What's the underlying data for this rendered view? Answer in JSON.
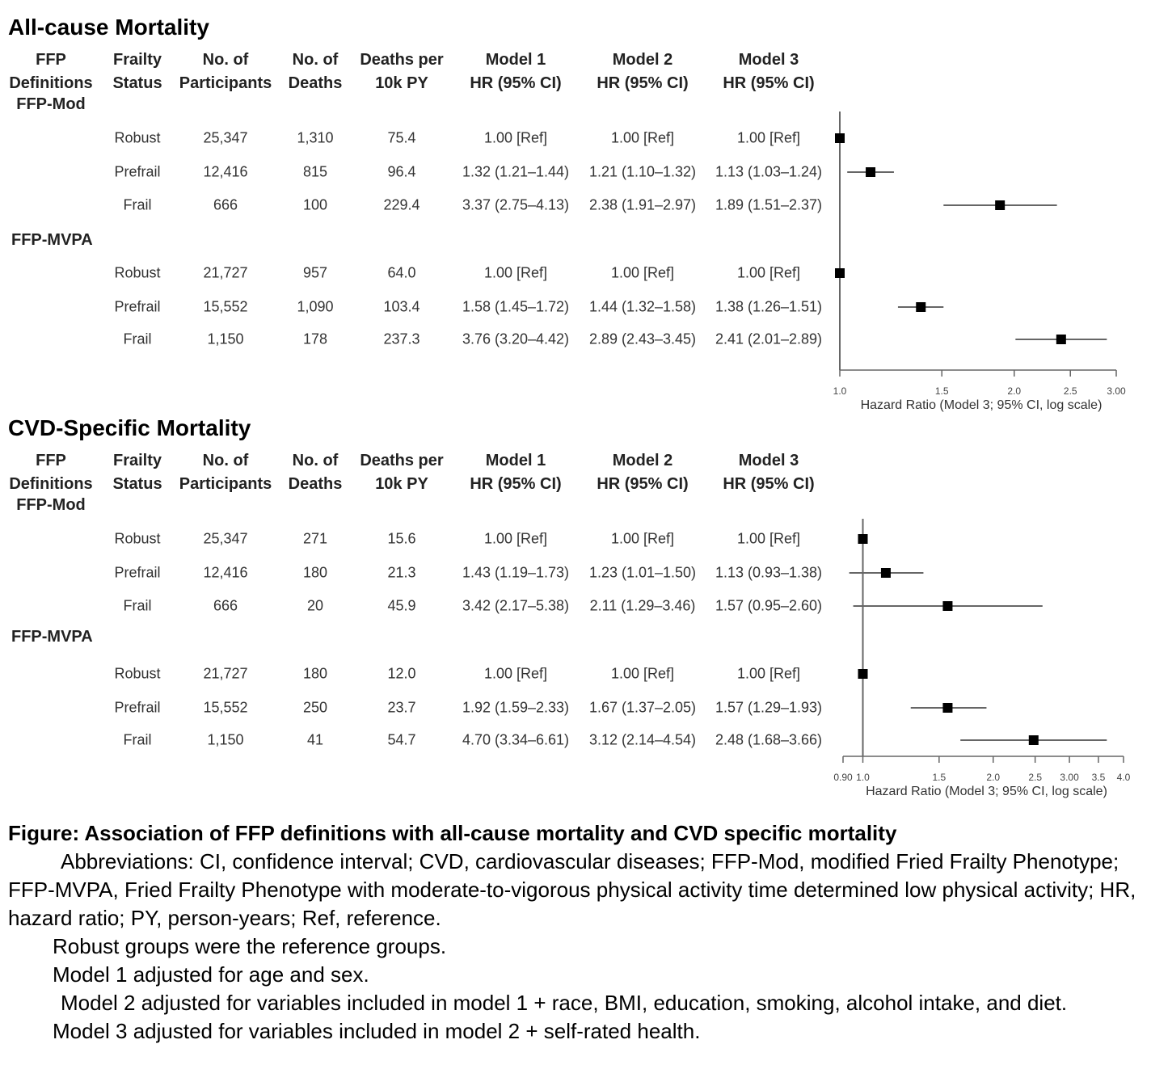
{
  "chart_data": [
    {
      "type": "forest",
      "title": "All-cause Mortality",
      "columns": [
        "FFP Definitions",
        "Frailty Status",
        "No. of Participants",
        "No. of Deaths",
        "Deaths per 10k PY",
        "Model 1 HR (95% CI)",
        "Model 2 HR (95% CI)",
        "Model 3 HR (95% CI)"
      ],
      "header_lines": [
        [
          "FFP",
          "Definitions",
          "FFP-Mod"
        ],
        [
          "Frailty",
          "Status"
        ],
        [
          "No. of",
          "Participants"
        ],
        [
          "No. of",
          "Deaths"
        ],
        [
          "Deaths per",
          "10k PY"
        ],
        [
          "Model 1",
          "HR (95% CI)"
        ],
        [
          "Model 2",
          "HR (95% CI)"
        ],
        [
          "Model 3",
          "HR (95% CI)"
        ]
      ],
      "second_group": "FFP-MVPA",
      "rows": [
        {
          "definition": "FFP-Mod",
          "status": "Robust",
          "participants": "25,347",
          "deaths": "1,310",
          "rate": "75.4",
          "m1": "1.00 [Ref]",
          "m2": "1.00 [Ref]",
          "m3": "1.00 [Ref]",
          "hr": 1.0,
          "lo": 1.0,
          "hi": 1.0
        },
        {
          "definition": "FFP-Mod",
          "status": "Prefrail",
          "participants": "12,416",
          "deaths": "815",
          "rate": "96.4",
          "m1": "1.32 (1.21–1.44)",
          "m2": "1.21 (1.10–1.32)",
          "m3": "1.13 (1.03–1.24)",
          "hr": 1.13,
          "lo": 1.03,
          "hi": 1.24
        },
        {
          "definition": "FFP-Mod",
          "status": "Frail",
          "participants": "666",
          "deaths": "100",
          "rate": "229.4",
          "m1": "3.37 (2.75–4.13)",
          "m2": "2.38 (1.91–2.97)",
          "m3": "1.89 (1.51–2.37)",
          "hr": 1.89,
          "lo": 1.51,
          "hi": 2.37
        },
        {
          "definition": "FFP-MVPA",
          "status": "Robust",
          "participants": "21,727",
          "deaths": "957",
          "rate": "64.0",
          "m1": "1.00 [Ref]",
          "m2": "1.00 [Ref]",
          "m3": "1.00 [Ref]",
          "hr": 1.0,
          "lo": 1.0,
          "hi": 1.0
        },
        {
          "definition": "FFP-MVPA",
          "status": "Prefrail",
          "participants": "15,552",
          "deaths": "1,090",
          "rate": "103.4",
          "m1": "1.58 (1.45–1.72)",
          "m2": "1.44 (1.32–1.58)",
          "m3": "1.38 (1.26–1.51)",
          "hr": 1.38,
          "lo": 1.26,
          "hi": 1.51
        },
        {
          "definition": "FFP-MVPA",
          "status": "Frail",
          "participants": "1,150",
          "deaths": "178",
          "rate": "237.3",
          "m1": "3.76 (3.20–4.42)",
          "m2": "2.89 (2.43–3.45)",
          "m3": "2.41 (2.01–2.89)",
          "hr": 2.41,
          "lo": 2.01,
          "hi": 2.89
        }
      ],
      "xscale": "log",
      "xlim": [
        1.0,
        3.0
      ],
      "xticks": [
        1.0,
        1.5,
        2.0,
        2.5,
        3.0
      ],
      "xtick_labels": [
        "1.0",
        "1.5",
        "2.0",
        "2.5",
        "3.00"
      ],
      "reference_line": 1.0,
      "xlabel": "Hazard Ratio (Model 3; 95% CI, log scale)"
    },
    {
      "type": "forest",
      "title": "CVD-Specific Mortality",
      "columns": [
        "FFP Definitions",
        "Frailty Status",
        "No. of Participants",
        "No. of Deaths",
        "Deaths per 10k PY",
        "Model 1 HR (95% CI)",
        "Model 2 HR (95% CI)",
        "Model 3 HR (95% CI)"
      ],
      "header_lines": [
        [
          "FFP",
          "Definitions",
          "FFP-Mod"
        ],
        [
          "Frailty",
          "Status"
        ],
        [
          "No. of",
          "Participants"
        ],
        [
          "No. of",
          "Deaths"
        ],
        [
          "Deaths per",
          "10k PY"
        ],
        [
          "Model 1",
          "HR (95% CI)"
        ],
        [
          "Model 2",
          "HR (95% CI)"
        ],
        [
          "Model 3",
          "HR (95% CI)"
        ]
      ],
      "second_group": "FFP-MVPA",
      "rows": [
        {
          "definition": "FFP-Mod",
          "status": "Robust",
          "participants": "25,347",
          "deaths": "271",
          "rate": "15.6",
          "m1": "1.00 [Ref]",
          "m2": "1.00 [Ref]",
          "m3": "1.00 [Ref]",
          "hr": 1.0,
          "lo": 1.0,
          "hi": 1.0
        },
        {
          "definition": "FFP-Mod",
          "status": "Prefrail",
          "participants": "12,416",
          "deaths": "180",
          "rate": "21.3",
          "m1": "1.43 (1.19–1.73)",
          "m2": "1.23 (1.01–1.50)",
          "m3": "1.13 (0.93–1.38)",
          "hr": 1.13,
          "lo": 0.93,
          "hi": 1.38
        },
        {
          "definition": "FFP-Mod",
          "status": "Frail",
          "participants": "666",
          "deaths": "20",
          "rate": "45.9",
          "m1": "3.42 (2.17–5.38)",
          "m2": "2.11 (1.29–3.46)",
          "m3": "1.57 (0.95–2.60)",
          "hr": 1.57,
          "lo": 0.95,
          "hi": 2.6
        },
        {
          "definition": "FFP-MVPA",
          "status": "Robust",
          "participants": "21,727",
          "deaths": "180",
          "rate": "12.0",
          "m1": "1.00 [Ref]",
          "m2": "1.00 [Ref]",
          "m3": "1.00 [Ref]",
          "hr": 1.0,
          "lo": 1.0,
          "hi": 1.0
        },
        {
          "definition": "FFP-MVPA",
          "status": "Prefrail",
          "participants": "15,552",
          "deaths": "250",
          "rate": "23.7",
          "m1": "1.92 (1.59–2.33)",
          "m2": "1.67 (1.37–2.05)",
          "m3": "1.57 (1.29–1.93)",
          "hr": 1.57,
          "lo": 1.29,
          "hi": 1.93
        },
        {
          "definition": "FFP-MVPA",
          "status": "Frail",
          "participants": "1,150",
          "deaths": "41",
          "rate": "54.7",
          "m1": "4.70 (3.34–6.61)",
          "m2": "3.12 (2.14–4.54)",
          "m3": "2.48 (1.68–3.66)",
          "hr": 2.48,
          "lo": 1.68,
          "hi": 3.66
        }
      ],
      "xscale": "log",
      "xlim": [
        0.9,
        4.0
      ],
      "xticks": [
        0.9,
        1.0,
        1.5,
        2.0,
        2.5,
        3.0,
        3.5,
        4.0
      ],
      "xtick_labels": [
        "0.90",
        "1.0",
        "1.5",
        "2.0",
        "2.5",
        "3.00",
        "3.5",
        "4.0"
      ],
      "reference_line": 1.0,
      "xlabel": "Hazard Ratio (Model 3; 95% CI, log scale)"
    }
  ],
  "caption": {
    "title": "Figure: Association of FFP definitions with all-cause mortality and CVD specific mortality",
    "abbreviations": "Abbreviations: CI, confidence interval; CVD, cardiovascular diseases; FFP-Mod, modified Fried Frailty Phenotype; FFP-MVPA, Fried Frailty Phenotype with moderate-to-vigorous physical activity time determined low physical activity; HR, hazard ratio; PY, person-years; Ref, reference.",
    "notes": [
      "Robust groups were the reference groups.",
      "Model 1 adjusted for age and sex.",
      "Model 2 adjusted for variables included in model 1 + race, BMI, education, smoking, alcohol intake, and diet.",
      "Model 3 adjusted for variables included in model 2 + self-rated health."
    ]
  }
}
